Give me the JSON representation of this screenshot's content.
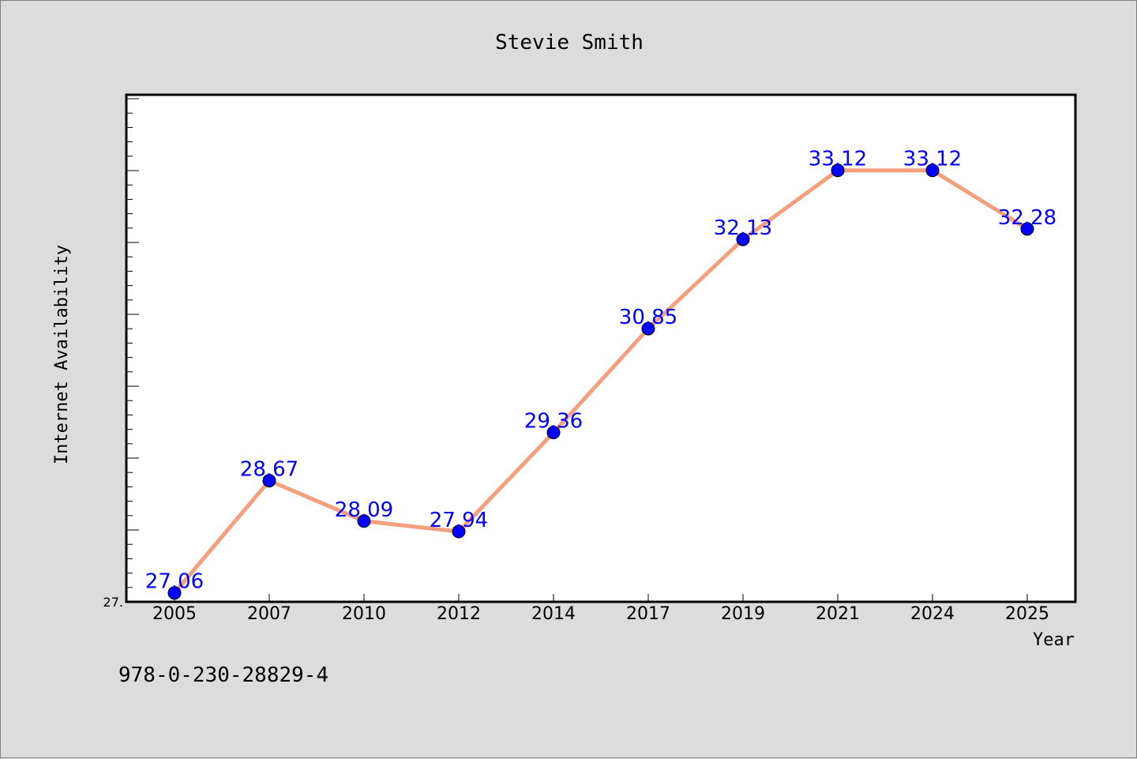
{
  "chart_data": {
    "type": "line",
    "title": "Stevie Smith",
    "xlabel": "Year",
    "ylabel": "Internet Availability",
    "categories": [
      "2005",
      "2007",
      "2010",
      "2012",
      "2014",
      "2017",
      "2019",
      "2021",
      "2024",
      "2025"
    ],
    "values": [
      27.06,
      28.67,
      28.09,
      27.94,
      29.36,
      30.85,
      32.13,
      33.12,
      33.12,
      32.28
    ],
    "data_labels": [
      "27.06",
      "28.67",
      "28.09",
      "27.94",
      "29.36",
      "30.85",
      "32.13",
      "33.12",
      "33.12",
      "32.28"
    ],
    "y_tick_label": "27.",
    "ylim": [
      27.0,
      34.0
    ],
    "grid": false,
    "legend": "none",
    "line_color": "#f4a07e",
    "marker_color": "#0000ff",
    "label_color": "#0000ff"
  },
  "footer_text": "978-0-230-28829-4"
}
